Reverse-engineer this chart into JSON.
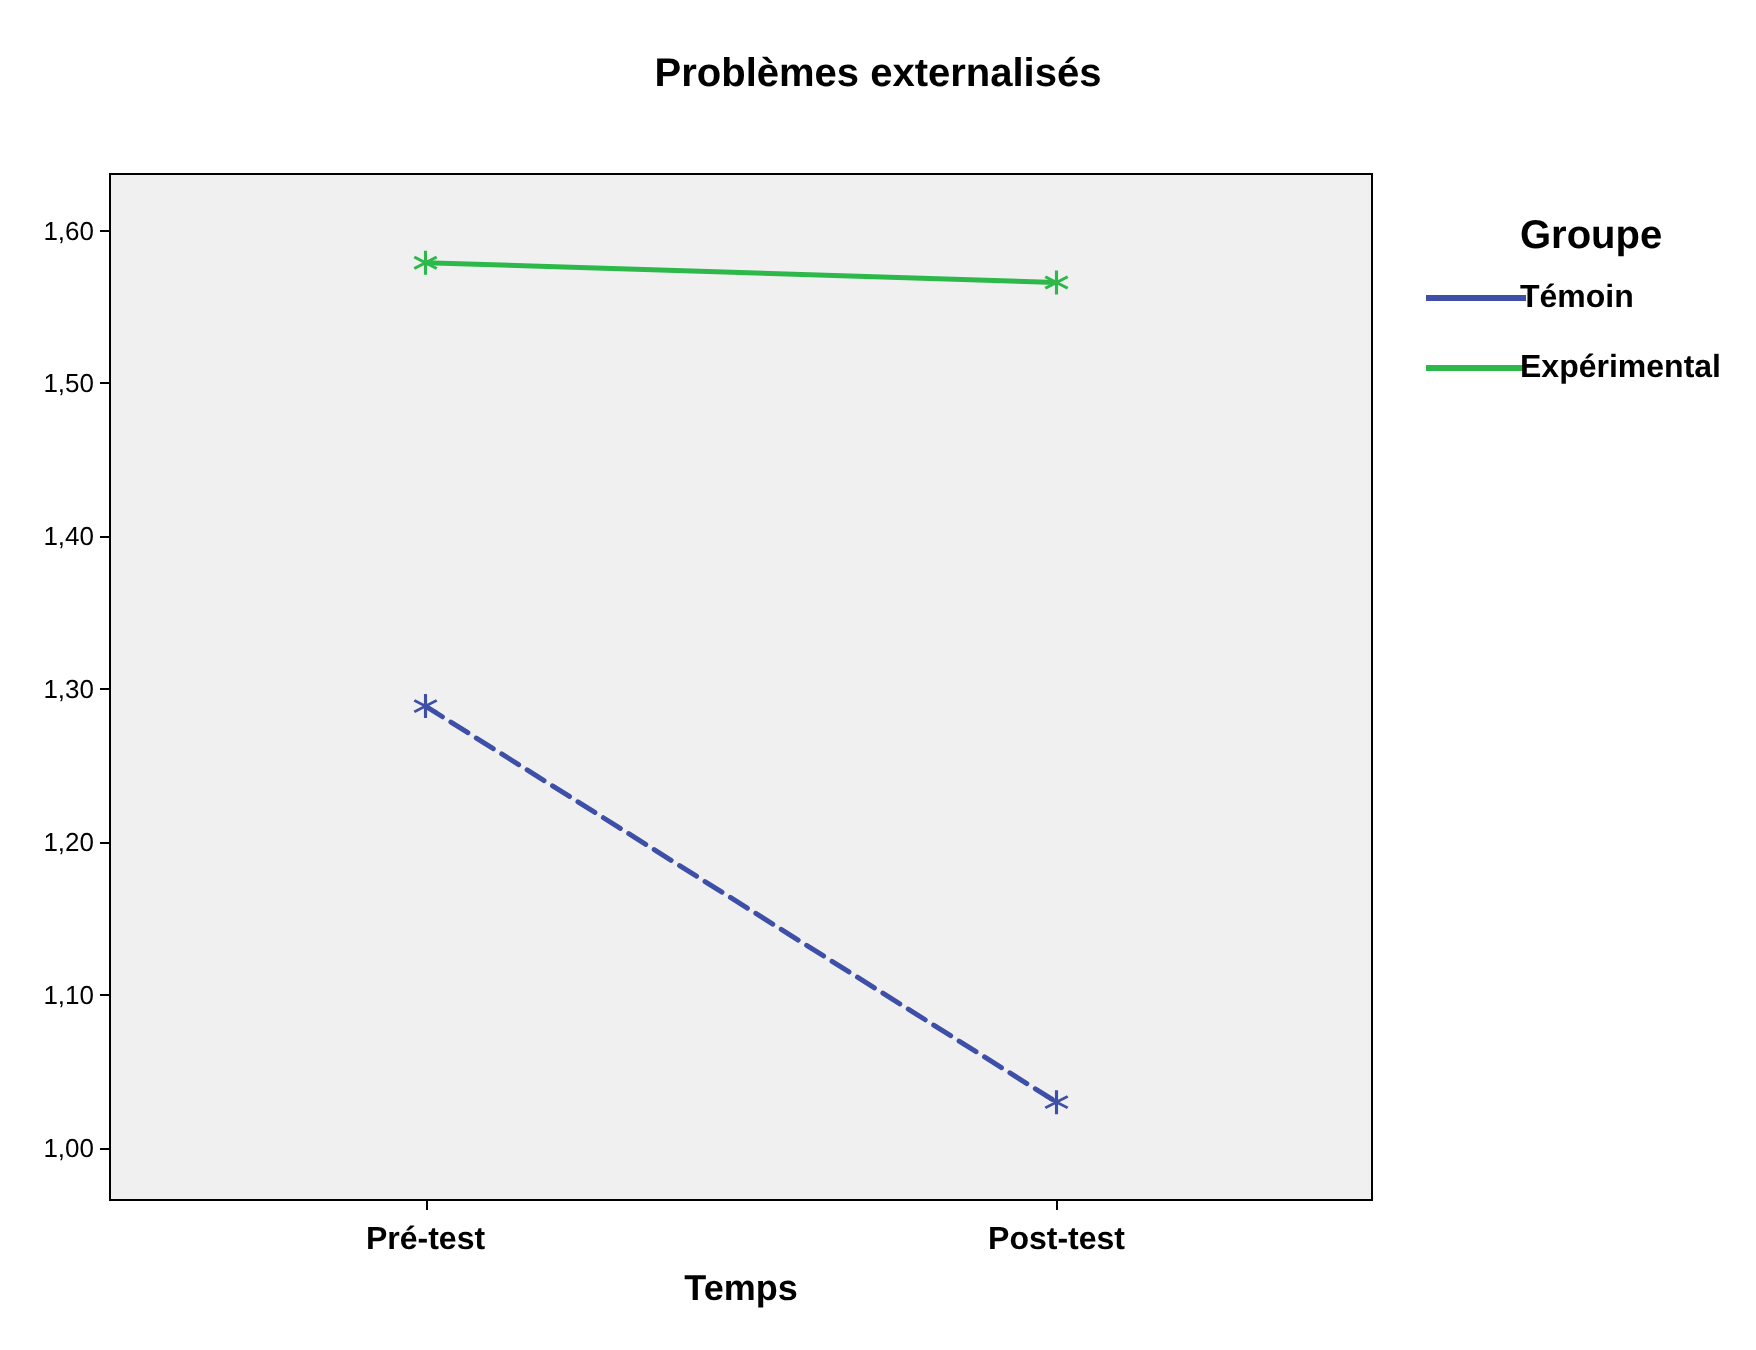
{
  "chart_data": {
    "type": "line",
    "title": "Problèmes externalisés",
    "xlabel": "Temps",
    "legend_title": "Groupe",
    "categories": [
      "Pré-test",
      "Post-test"
    ],
    "series": [
      {
        "name": "Témoin",
        "color": "#3e4fa8",
        "values": [
          1.289,
          1.03
        ],
        "line_style": "dashed"
      },
      {
        "name": "Expérimental",
        "color": "#2db84a",
        "values": [
          1.579,
          1.566
        ],
        "line_style": "solid"
      }
    ],
    "ylim": [
      0.966,
      1.637
    ],
    "yticks": [
      {
        "value": 1.0,
        "label": "1,00"
      },
      {
        "value": 1.1,
        "label": "1,10"
      },
      {
        "value": 1.2,
        "label": "1,20"
      },
      {
        "value": 1.3,
        "label": "1,30"
      },
      {
        "value": 1.4,
        "label": "1,40"
      },
      {
        "value": 1.5,
        "label": "1,50"
      },
      {
        "value": 1.6,
        "label": "1,60"
      }
    ],
    "grid": false,
    "legend": "top right",
    "marker": "cross"
  }
}
